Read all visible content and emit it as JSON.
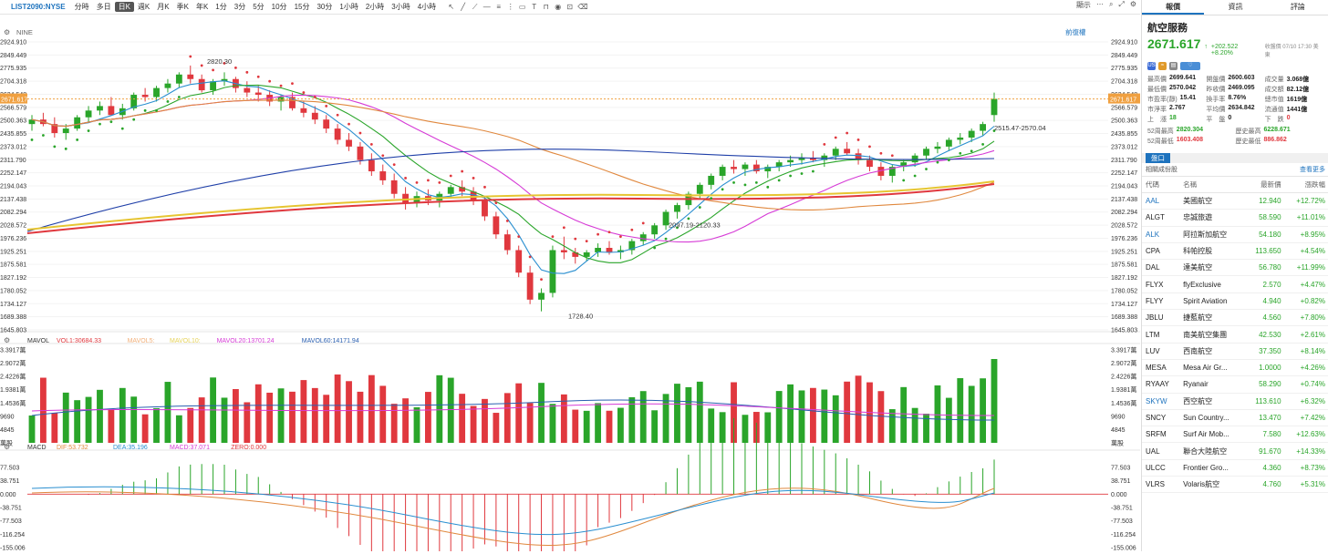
{
  "toolbar": {
    "symbol": "LIST2090:NYSE",
    "periods": [
      "分時",
      "多日",
      "日K",
      "週K",
      "月K",
      "季K",
      "年K",
      "1分",
      "3分",
      "5分",
      "10分",
      "15分",
      "30分",
      "1小時",
      "2小時",
      "3小時",
      "4小時"
    ],
    "active_period": "日K",
    "right_items": [
      "顯示",
      "⋯"
    ]
  },
  "main_chart": {
    "indicator_label": "NINE",
    "adjust_label": "前復權",
    "left_ticks": [
      "2924.910",
      "2849.449",
      "2775.935",
      "2704.318",
      "2634.548",
      "2566.579",
      "2500.363",
      "2435.855",
      "2373.012",
      "2311.790",
      "2252.147",
      "2194.043",
      "2137.438",
      "2082.294",
      "2028.572",
      "1976.236",
      "1925.251",
      "1875.581",
      "1827.192",
      "1780.052",
      "1734.127",
      "1689.388",
      "1645.803"
    ],
    "right_ticks": [
      "2924.910",
      "2849.449",
      "2775.935",
      "2704.318",
      "2634.548",
      "2566.579",
      "2500.363",
      "2435.855",
      "2373.012",
      "2311.790",
      "2252.147",
      "2194.043",
      "2137.438",
      "2082.294",
      "2028.572",
      "1976.236",
      "1925.251",
      "1875.581",
      "1827.192",
      "1780.052",
      "1734.127",
      "1689.388",
      "1645.803"
    ],
    "current_price_tag": "2671.617",
    "high_label": "2820.30",
    "low_label": "1728.40",
    "mid_label": "2097.19-2120.33",
    "right_label": "2515.47-2570.04"
  },
  "volume_chart": {
    "title": "MAVOL",
    "items": [
      {
        "label": "VOL1:30684.33",
        "color": "#e0383e"
      },
      {
        "label": "MAVOL5:",
        "color": "#f2b07a"
      },
      {
        "label": "MAVOL10:",
        "color": "#e6d35a"
      },
      {
        "label": "MAVOL20:13701.24",
        "color": "#d63bd6"
      },
      {
        "label": "MAVOL60:14171.94",
        "color": "#2a5fb0"
      }
    ],
    "ticks": [
      "3.3917萬",
      "2.9072萬",
      "2.4226萬",
      "1.9381萬",
      "1.4536萬",
      "9690",
      "4845",
      "萬股"
    ]
  },
  "macd_chart": {
    "title": "MACD",
    "items": [
      {
        "label": "DIF:53.732",
        "color": "#e0883e"
      },
      {
        "label": "DEA:35.196",
        "color": "#2a8fd0"
      },
      {
        "label": "MACD:37.071",
        "color": "#d63bd6"
      },
      {
        "label": "ZERO:0.000",
        "color": "#e0383e"
      }
    ],
    "left_ticks": [
      "77.503",
      "38.751",
      "0.000",
      "-38.751",
      "-77.503",
      "-116.254",
      "-155.006"
    ],
    "right_ticks": [
      "77.503",
      "38.751",
      "0.000",
      "-38.751",
      "-77.503",
      "-116.254",
      "-155.006"
    ]
  },
  "panel": {
    "tabs": [
      "報價",
      "資訊",
      "評論"
    ],
    "name": "航空服務",
    "price": "2671.617",
    "change": "+202.522 +8.20%",
    "timestamp": "收盤價 07/10 17:30 美東",
    "stats": [
      {
        "k": "最高價",
        "v": "2699.641"
      },
      {
        "k": "開盤價",
        "v": "2600.603"
      },
      {
        "k": "成交量",
        "v": "3.068億"
      },
      {
        "k": "最低價",
        "v": "2570.042"
      },
      {
        "k": "昨收價",
        "v": "2469.095"
      },
      {
        "k": "成交額",
        "v": "82.12億"
      },
      {
        "k": "市盈率(靜)",
        "v": "15.41"
      },
      {
        "k": "換手率",
        "v": "8.76%"
      },
      {
        "k": "總市值",
        "v": "1619億"
      },
      {
        "k": "市淨率",
        "v": "2.767"
      },
      {
        "k": "平均價",
        "v": "2634.842"
      },
      {
        "k": "流通值",
        "v": "1441億"
      },
      {
        "k": "上　漲",
        "v": "18"
      },
      {
        "k": "平　盤",
        "v": "0"
      },
      {
        "k": "下　跌",
        "v": "0"
      }
    ],
    "stats2": [
      {
        "k": "52周最高",
        "v": "2820.304"
      },
      {
        "k": "歷史最高",
        "v": "6228.671"
      },
      {
        "k": "52周最低",
        "v": "1603.408"
      },
      {
        "k": "歷史最低",
        "v": "886.862"
      }
    ],
    "sector_tab": "盤口",
    "sub_head": "相關成份股",
    "more": "查看更多",
    "columns": [
      "代碼",
      "名稱",
      "最新價",
      "漲跌幅"
    ],
    "rows": [
      {
        "code": "AAL",
        "name": "美國航空",
        "price": "12.940",
        "chg": "+12.72%",
        "blue": true
      },
      {
        "code": "ALGT",
        "name": "忠誠旅遊",
        "price": "58.590",
        "chg": "+11.01%",
        "blue": false
      },
      {
        "code": "ALK",
        "name": "阿拉斯加航空",
        "price": "54.180",
        "chg": "+8.95%",
        "blue": true
      },
      {
        "code": "CPA",
        "name": "科帕控股",
        "price": "113.650",
        "chg": "+4.54%",
        "blue": false
      },
      {
        "code": "DAL",
        "name": "達美航空",
        "price": "56.780",
        "chg": "+11.99%",
        "blue": false
      },
      {
        "code": "FLYX",
        "name": "flyExclusive",
        "price": "2.570",
        "chg": "+4.47%",
        "blue": false
      },
      {
        "code": "FLYY",
        "name": "Spirit Aviation",
        "price": "4.940",
        "chg": "+0.82%",
        "blue": false
      },
      {
        "code": "JBLU",
        "name": "捷藍航空",
        "price": "4.560",
        "chg": "+7.80%",
        "blue": false
      },
      {
        "code": "LTM",
        "name": "南美航空集團",
        "price": "42.530",
        "chg": "+2.61%",
        "blue": false
      },
      {
        "code": "LUV",
        "name": "西南航空",
        "price": "37.350",
        "chg": "+8.14%",
        "blue": false
      },
      {
        "code": "MESA",
        "name": "Mesa Air Gr...",
        "price": "1.0000",
        "chg": "+4.26%",
        "blue": false
      },
      {
        "code": "RYAAY",
        "name": "Ryanair",
        "price": "58.290",
        "chg": "+0.74%",
        "blue": false
      },
      {
        "code": "SKYW",
        "name": "西空航空",
        "price": "113.610",
        "chg": "+6.32%",
        "blue": true
      },
      {
        "code": "SNCY",
        "name": "Sun Country...",
        "price": "13.470",
        "chg": "+7.42%",
        "blue": false
      },
      {
        "code": "SRFM",
        "name": "Surf Air Mob...",
        "price": "7.580",
        "chg": "+12.63%",
        "blue": false
      },
      {
        "code": "UAL",
        "name": "聯合大陸航空",
        "price": "91.670",
        "chg": "+14.33%",
        "blue": false
      },
      {
        "code": "ULCC",
        "name": "Frontier Gro...",
        "price": "4.360",
        "chg": "+8.73%",
        "blue": false
      },
      {
        "code": "VLRS",
        "name": "Volaris航空",
        "price": "4.760",
        "chg": "+5.31%",
        "blue": false
      }
    ]
  },
  "chart_data": {
    "type": "candlestick",
    "ylim": [
      1645.803,
      2924.91
    ],
    "ohlc": [
      [
        2560,
        2600,
        2530,
        2580
      ],
      [
        2580,
        2610,
        2550,
        2560
      ],
      [
        2560,
        2590,
        2500,
        2520
      ],
      [
        2520,
        2560,
        2490,
        2540
      ],
      [
        2540,
        2600,
        2530,
        2590
      ],
      [
        2590,
        2640,
        2570,
        2620
      ],
      [
        2620,
        2660,
        2600,
        2640
      ],
      [
        2640,
        2680,
        2610,
        2600
      ],
      [
        2600,
        2650,
        2580,
        2630
      ],
      [
        2630,
        2700,
        2620,
        2690
      ],
      [
        2690,
        2720,
        2660,
        2680
      ],
      [
        2680,
        2730,
        2660,
        2720
      ],
      [
        2720,
        2760,
        2700,
        2740
      ],
      [
        2740,
        2790,
        2720,
        2780
      ],
      [
        2780,
        2820,
        2740,
        2760
      ],
      [
        2760,
        2780,
        2700,
        2710
      ],
      [
        2710,
        2760,
        2690,
        2750
      ],
      [
        2750,
        2790,
        2730,
        2760
      ],
      [
        2760,
        2770,
        2700,
        2720
      ],
      [
        2720,
        2750,
        2680,
        2700
      ],
      [
        2700,
        2730,
        2660,
        2690
      ],
      [
        2690,
        2710,
        2640,
        2660
      ],
      [
        2660,
        2690,
        2620,
        2680
      ],
      [
        2680,
        2700,
        2620,
        2630
      ],
      [
        2630,
        2660,
        2590,
        2610
      ],
      [
        2610,
        2640,
        2560,
        2580
      ],
      [
        2580,
        2600,
        2520,
        2540
      ],
      [
        2540,
        2560,
        2470,
        2490
      ],
      [
        2490,
        2520,
        2440,
        2460
      ],
      [
        2460,
        2480,
        2380,
        2400
      ],
      [
        2400,
        2430,
        2330,
        2350
      ],
      [
        2350,
        2380,
        2290,
        2310
      ],
      [
        2310,
        2340,
        2230,
        2250
      ],
      [
        2250,
        2280,
        2180,
        2210
      ],
      [
        2210,
        2260,
        2190,
        2240
      ],
      [
        2240,
        2270,
        2200,
        2220
      ],
      [
        2220,
        2260,
        2190,
        2250
      ],
      [
        2250,
        2290,
        2230,
        2280
      ],
      [
        2280,
        2310,
        2240,
        2260
      ],
      [
        2260,
        2280,
        2200,
        2220
      ],
      [
        2220,
        2240,
        2130,
        2150
      ],
      [
        2150,
        2170,
        2050,
        2070
      ],
      [
        2070,
        2090,
        1980,
        2000
      ],
      [
        2000,
        2020,
        1880,
        1900
      ],
      [
        1900,
        1930,
        1760,
        1780
      ],
      [
        1780,
        1830,
        1728,
        1810
      ],
      [
        1810,
        2020,
        1790,
        2000
      ],
      [
        2000,
        2060,
        1960,
        1990
      ],
      [
        1990,
        2010,
        1940,
        1970
      ],
      [
        1970,
        2000,
        1950,
        1990
      ],
      [
        1990,
        2030,
        1970,
        2010
      ],
      [
        2010,
        2040,
        1980,
        1990
      ],
      [
        1990,
        2020,
        1960,
        2000
      ],
      [
        2000,
        2050,
        1980,
        2040
      ],
      [
        2040,
        2080,
        2020,
        2070
      ],
      [
        2070,
        2120,
        2050,
        2110
      ],
      [
        2110,
        2180,
        2090,
        2170
      ],
      [
        2170,
        2210,
        2140,
        2200
      ],
      [
        2200,
        2260,
        2180,
        2250
      ],
      [
        2250,
        2300,
        2230,
        2290
      ],
      [
        2290,
        2340,
        2270,
        2330
      ],
      [
        2330,
        2380,
        2310,
        2370
      ],
      [
        2370,
        2400,
        2340,
        2360
      ],
      [
        2360,
        2390,
        2330,
        2380
      ],
      [
        2380,
        2400,
        2340,
        2350
      ],
      [
        2350,
        2380,
        2320,
        2370
      ],
      [
        2370,
        2400,
        2350,
        2390
      ],
      [
        2390,
        2420,
        2370,
        2400
      ],
      [
        2400,
        2430,
        2380,
        2410
      ],
      [
        2410,
        2440,
        2390,
        2400
      ],
      [
        2400,
        2430,
        2370,
        2420
      ],
      [
        2420,
        2460,
        2400,
        2450
      ],
      [
        2450,
        2480,
        2420,
        2430
      ],
      [
        2430,
        2450,
        2380,
        2400
      ],
      [
        2400,
        2420,
        2350,
        2370
      ],
      [
        2370,
        2390,
        2310,
        2330
      ],
      [
        2330,
        2380,
        2300,
        2370
      ],
      [
        2370,
        2400,
        2350,
        2390
      ],
      [
        2390,
        2430,
        2370,
        2420
      ],
      [
        2420,
        2460,
        2400,
        2450
      ],
      [
        2450,
        2480,
        2430,
        2460
      ],
      [
        2460,
        2500,
        2440,
        2490
      ],
      [
        2490,
        2520,
        2470,
        2500
      ],
      [
        2500,
        2540,
        2480,
        2530
      ],
      [
        2530,
        2570,
        2510,
        2560
      ],
      [
        2600,
        2700,
        2570,
        2672
      ]
    ]
  }
}
